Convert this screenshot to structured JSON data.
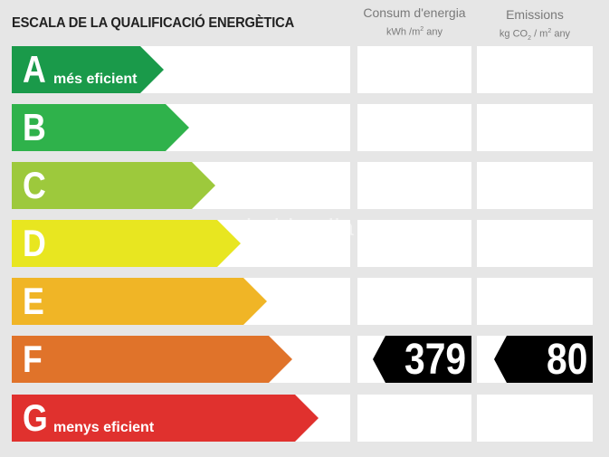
{
  "title": "ESCALA DE LA QUALIFICACIÓ ENERGÈTICA",
  "energy_header": {
    "label": "Consum d'energia",
    "unit_pre": "kWh /m",
    "unit_sup": "2",
    "unit_post": " any"
  },
  "emission_header": {
    "label": "Emissions",
    "unit_pre": "kg CO",
    "unit_sub": "2",
    "unit_mid": " / m",
    "unit_sup": "2",
    "unit_post": " any"
  },
  "watermark": "habitaclia",
  "ratings": [
    {
      "letter": "A",
      "sublabel": "més eficient",
      "color": "#1a9a4a"
    },
    {
      "letter": "B",
      "sublabel": "",
      "color": "#2fb24b"
    },
    {
      "letter": "C",
      "sublabel": "",
      "color": "#9dc93c"
    },
    {
      "letter": "D",
      "sublabel": "",
      "color": "#e8e620"
    },
    {
      "letter": "E",
      "sublabel": "",
      "color": "#f0b526"
    },
    {
      "letter": "F",
      "sublabel": "",
      "color": "#e0732a"
    },
    {
      "letter": "G",
      "sublabel": "menys eficient",
      "color": "#e0312e"
    }
  ],
  "current": {
    "rating": "F",
    "energy_value": "379",
    "emission_value": "80"
  }
}
